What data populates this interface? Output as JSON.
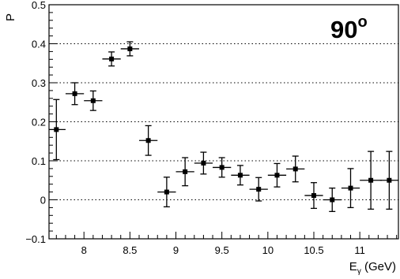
{
  "chart_data": {
    "type": "scatter",
    "title": "",
    "annotation": "90",
    "annotation_sup": "o",
    "xlabel": "E",
    "xlabel_sub": "γ",
    "xlabel_unit": " (GeV)",
    "ylabel": "P",
    "xlim": [
      7.62,
      11.42
    ],
    "ylim": [
      -0.1,
      0.5
    ],
    "xticks": [
      8,
      8.5,
      9,
      9.5,
      10,
      10.5,
      11
    ],
    "xtick_labels": [
      "8",
      "8.5",
      "9",
      "9.5",
      "10",
      "10.5",
      "11"
    ],
    "yticks": [
      -0.1,
      0,
      0.1,
      0.2,
      0.3,
      0.4,
      0.5
    ],
    "ytick_labels": [
      "−0.1",
      "0",
      "0.1",
      "0.2",
      "0.3",
      "0.4",
      "0.5"
    ],
    "grid": "horizontal dotted at major y ticks",
    "points": [
      {
        "x": 7.7,
        "y": 0.18,
        "xerr": 0.1,
        "yerr": 0.077
      },
      {
        "x": 7.9,
        "y": 0.272,
        "xerr": 0.1,
        "yerr": 0.028
      },
      {
        "x": 8.1,
        "y": 0.254,
        "xerr": 0.1,
        "yerr": 0.025
      },
      {
        "x": 8.3,
        "y": 0.361,
        "xerr": 0.1,
        "yerr": 0.018
      },
      {
        "x": 8.5,
        "y": 0.387,
        "xerr": 0.1,
        "yerr": 0.018
      },
      {
        "x": 8.7,
        "y": 0.152,
        "xerr": 0.1,
        "yerr": 0.038
      },
      {
        "x": 8.9,
        "y": 0.02,
        "xerr": 0.1,
        "yerr": 0.038
      },
      {
        "x": 9.1,
        "y": 0.072,
        "xerr": 0.1,
        "yerr": 0.036
      },
      {
        "x": 9.3,
        "y": 0.094,
        "xerr": 0.1,
        "yerr": 0.028
      },
      {
        "x": 9.5,
        "y": 0.083,
        "xerr": 0.1,
        "yerr": 0.025
      },
      {
        "x": 9.7,
        "y": 0.063,
        "xerr": 0.1,
        "yerr": 0.025
      },
      {
        "x": 9.9,
        "y": 0.027,
        "xerr": 0.1,
        "yerr": 0.03
      },
      {
        "x": 10.1,
        "y": 0.063,
        "xerr": 0.1,
        "yerr": 0.03
      },
      {
        "x": 10.3,
        "y": 0.079,
        "xerr": 0.1,
        "yerr": 0.033
      },
      {
        "x": 10.5,
        "y": 0.011,
        "xerr": 0.1,
        "yerr": 0.033
      },
      {
        "x": 10.7,
        "y": 0.0,
        "xerr": 0.1,
        "yerr": 0.03
      },
      {
        "x": 10.9,
        "y": 0.03,
        "xerr": 0.1,
        "yerr": 0.05
      },
      {
        "x": 11.12,
        "y": 0.05,
        "xerr": 0.12,
        "yerr": 0.074
      },
      {
        "x": 11.32,
        "y": 0.05,
        "xerr": 0.1,
        "yerr": 0.074
      }
    ]
  }
}
